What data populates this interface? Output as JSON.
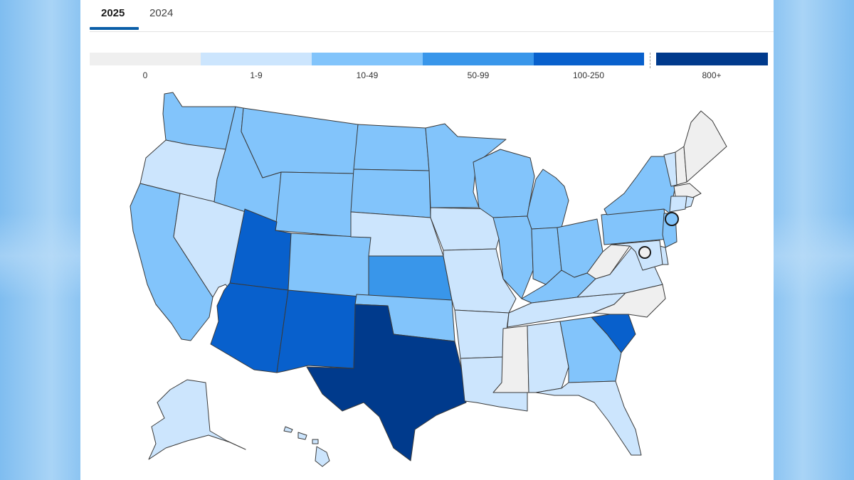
{
  "tabs": [
    {
      "label": "2025",
      "active": true
    },
    {
      "label": "2024",
      "active": false
    }
  ],
  "legend": [
    {
      "label": "0",
      "color": "#efefef"
    },
    {
      "label": "1-9",
      "color": "#cce5fd"
    },
    {
      "label": "10-49",
      "color": "#82c4fb"
    },
    {
      "label": "50-99",
      "color": "#3996ea"
    },
    {
      "label": "100-250",
      "color": "#0860cc"
    },
    {
      "label": "800+",
      "color": "#003a8c"
    }
  ],
  "map": {
    "type": "choropleth",
    "region": "United States",
    "states": {
      "WA": "10-49",
      "OR": "1-9",
      "CA": "10-49",
      "NV": "1-9",
      "ID": "10-49",
      "MT": "10-49",
      "WY": "10-49",
      "UT": "100-250",
      "AZ": "100-250",
      "NM": "100-250",
      "CO": "10-49",
      "ND": "10-49",
      "SD": "10-49",
      "NE": "1-9",
      "KS": "50-99",
      "OK": "10-49",
      "TX": "800+",
      "MN": "10-49",
      "IA": "1-9",
      "MO": "1-9",
      "AR": "1-9",
      "LA": "1-9",
      "WI": "10-49",
      "IL": "10-49",
      "MI": "10-49",
      "IN": "10-49",
      "OH": "10-49",
      "KY": "10-49",
      "TN": "1-9",
      "MS": "0",
      "AL": "1-9",
      "GA": "10-49",
      "FL": "1-9",
      "SC": "100-250",
      "NC": "0",
      "VA": "1-9",
      "WV": "0",
      "PA": "10-49",
      "NY": "10-49",
      "VT": "1-9",
      "NH": "0",
      "ME": "0",
      "MA": "0",
      "CT": "1-9",
      "RI": "1-9",
      "NJ": "10-49",
      "DE": "1-9",
      "MD": "1-9",
      "AK": "1-9",
      "HI": "1-9"
    },
    "markers": [
      {
        "name": "NYC",
        "bin": "10-49"
      },
      {
        "name": "DC",
        "bin": "0"
      }
    ]
  }
}
